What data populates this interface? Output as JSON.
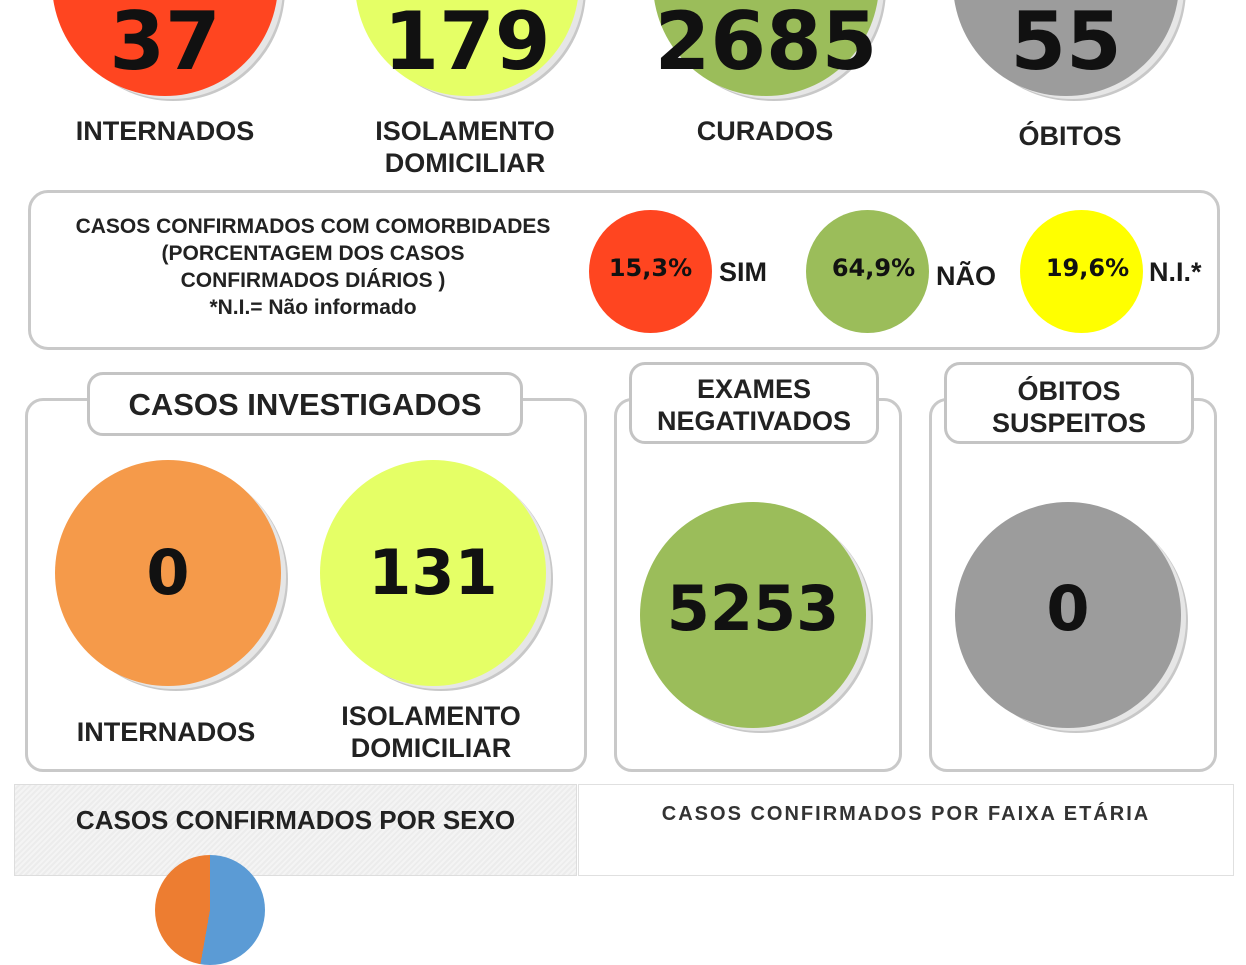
{
  "top": {
    "items": [
      {
        "value": "37",
        "label_lines": [
          "INTERNADOS"
        ],
        "color": "#ff4520"
      },
      {
        "value": "179",
        "label_lines": [
          "ISOLAMENTO",
          "DOMICILIAR"
        ],
        "color": "#e5ff66"
      },
      {
        "value": "2685",
        "label_lines": [
          "CURADOS"
        ],
        "color": "#9bbd5a"
      },
      {
        "value": "55",
        "label_lines": [
          "ÓBITOS"
        ],
        "color": "#9c9c9c"
      }
    ]
  },
  "comorbidades": {
    "title_lines": [
      "CASOS CONFIRMADOS COM COMORBIDADES",
      "(PORCENTAGEM DOS CASOS",
      "CONFIRMADOS DIÁRIOS )",
      "*N.I.= Não informado"
    ],
    "items": [
      {
        "pct": "15,3%",
        "label": "SIM",
        "color": "#ff4520"
      },
      {
        "pct": "64,9%",
        "label": "NÃO",
        "color": "#9bbd5a"
      },
      {
        "pct": "19,6%",
        "label": "N.I.*",
        "color": "#ffff00"
      }
    ]
  },
  "investigados": {
    "title": "CASOS INVESTIGADOS",
    "internados": {
      "value": "0",
      "label": "INTERNADOS",
      "color": "#f59a4a"
    },
    "isolamento": {
      "value": "131",
      "label_lines": [
        "ISOLAMENTO",
        "DOMICILIAR"
      ],
      "color": "#e5ff66"
    }
  },
  "exames": {
    "title_lines": [
      "EXAMES",
      "NEGATIVADOS"
    ],
    "value": "5253",
    "color": "#9bbd5a"
  },
  "obitos_suspeitos": {
    "title_lines": [
      "ÓBITOS",
      "SUSPEITOS"
    ],
    "value": "0",
    "color": "#9c9c9c"
  },
  "bottom": {
    "sexo_title": "CASOS CONFIRMADOS POR SEXO",
    "faixa_title": "CASOS CONFIRMADOS POR FAIXA ETÁRIA"
  }
}
